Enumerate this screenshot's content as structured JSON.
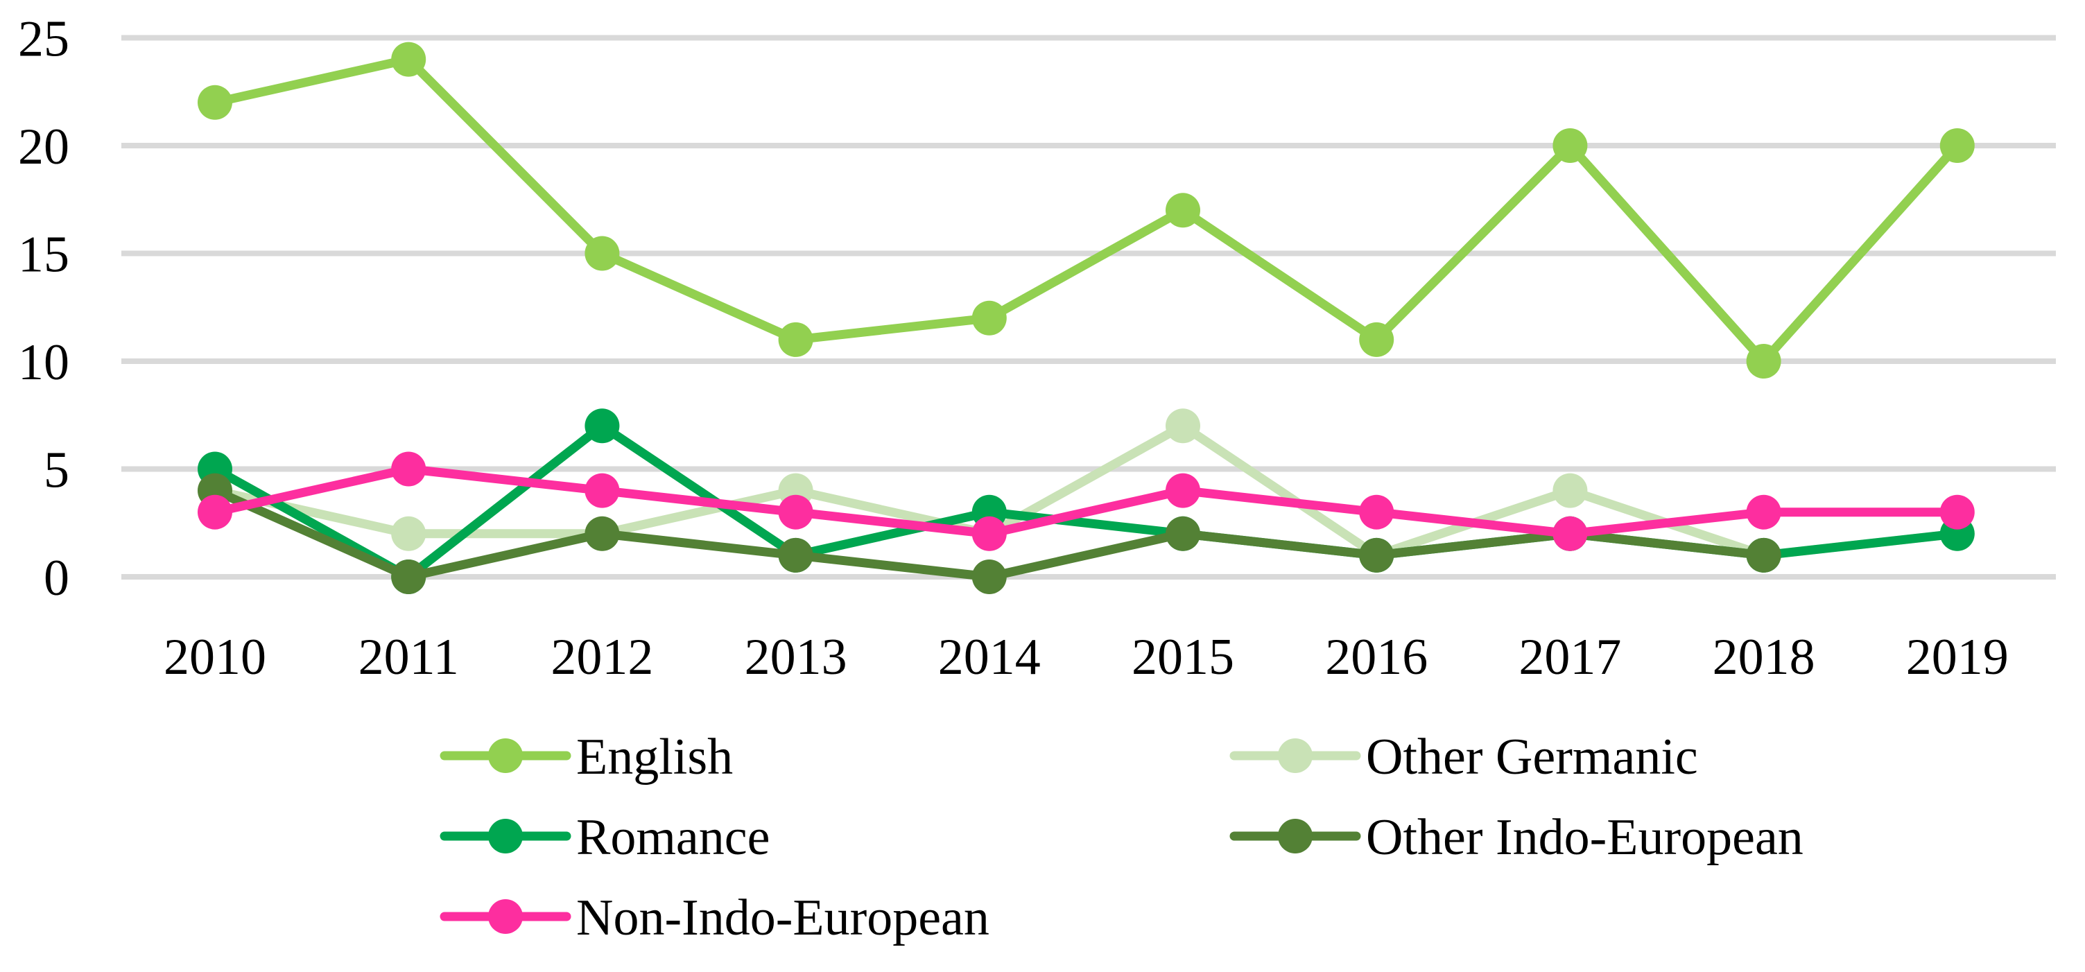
{
  "chart_data": {
    "type": "line",
    "categories": [
      "2010",
      "2011",
      "2012",
      "2013",
      "2014",
      "2015",
      "2016",
      "2017",
      "2018",
      "2019"
    ],
    "series": [
      {
        "name": "English",
        "color": "#92D050",
        "values": [
          22,
          24,
          15,
          11,
          12,
          17,
          11,
          20,
          10,
          20
        ]
      },
      {
        "name": "Other Germanic",
        "color": "#C9E2B6",
        "values": [
          4,
          2,
          2,
          4,
          2,
          7,
          1,
          4,
          1,
          2
        ]
      },
      {
        "name": "Romance",
        "color": "#00A650",
        "values": [
          5,
          0,
          7,
          1,
          3,
          2,
          1,
          2,
          1,
          2
        ]
      },
      {
        "name": "Other Indo-European",
        "color": "#538135",
        "values": [
          4,
          0,
          2,
          1,
          0,
          2,
          1,
          2,
          1,
          null
        ]
      },
      {
        "name": "Non-Indo-European",
        "color": "#FD2E9F",
        "values": [
          3,
          5,
          4,
          3,
          2,
          4,
          3,
          2,
          3,
          3
        ]
      }
    ],
    "y_axis": {
      "min": 0,
      "max": 25,
      "ticks": [
        0,
        5,
        10,
        15,
        20,
        25
      ]
    },
    "x_axis": {
      "label": "",
      "tick_labels": [
        "2010",
        "2011",
        "2012",
        "2013",
        "2014",
        "2015",
        "2016",
        "2017",
        "2018",
        "2019"
      ]
    },
    "title": "",
    "grid": "horizontal",
    "gridline_color": "#D9D9D9",
    "legend": {
      "position": "bottom",
      "columns": 2,
      "entries": [
        "English",
        "Other Germanic",
        "Romance",
        "Other Indo-European",
        "Non-Indo-European"
      ]
    }
  }
}
